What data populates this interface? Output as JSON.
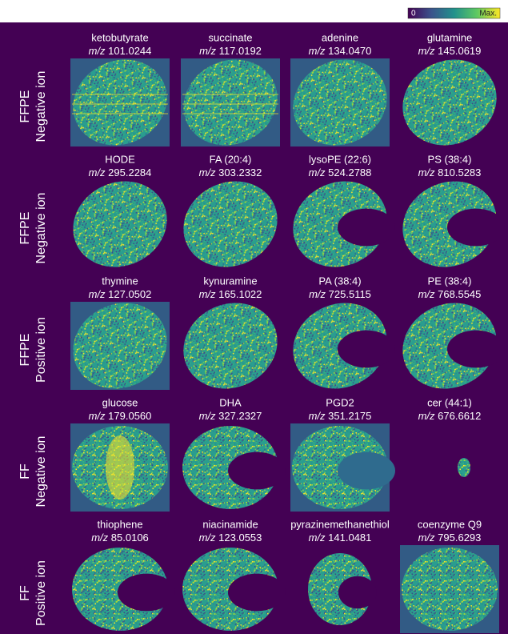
{
  "colorbar": {
    "min_label": "0",
    "max_label": "Max."
  },
  "mz_label": "m/z",
  "rows": [
    {
      "label": [
        "FFPE",
        "Negative ion"
      ],
      "panels": [
        {
          "name": "ketobutyrate",
          "mz": "101.0244"
        },
        {
          "name": "succinate",
          "mz": "117.0192"
        },
        {
          "name": "adenine",
          "mz": "134.0470"
        },
        {
          "name": "glutamine",
          "mz": "145.0619"
        }
      ]
    },
    {
      "label": [
        "FFPE",
        "Negative ion"
      ],
      "panels": [
        {
          "name": "HODE",
          "mz": "295.2284"
        },
        {
          "name": "FA (20:4)",
          "mz": "303.2332"
        },
        {
          "name": "lysoPE (22:6)",
          "mz": "524.2788"
        },
        {
          "name": "PS (38:4)",
          "mz": "810.5283"
        }
      ]
    },
    {
      "label": [
        "FFPE",
        "Positive ion"
      ],
      "panels": [
        {
          "name": "thymine",
          "mz": "127.0502"
        },
        {
          "name": "kynuramine",
          "mz": "165.1022"
        },
        {
          "name": "PA (38:4)",
          "mz": "725.5115"
        },
        {
          "name": "PE (38:4)",
          "mz": "768.5545"
        }
      ]
    },
    {
      "label": [
        "FF",
        "Negative ion"
      ],
      "panels": [
        {
          "name": "glucose",
          "mz": "179.0560"
        },
        {
          "name": "DHA",
          "mz": "327.2327"
        },
        {
          "name": "PGD2",
          "mz": "351.2175"
        },
        {
          "name": "cer (44:1)",
          "mz": "676.6612"
        }
      ]
    },
    {
      "label": [
        "FF",
        "Positive ion"
      ],
      "panels": [
        {
          "name": "thiophene",
          "mz": "85.0106"
        },
        {
          "name": "niacinamide",
          "mz": "123.0553"
        },
        {
          "name": "pyrazinemethanethiol",
          "mz": "141.0481"
        },
        {
          "name": "coenzyme Q9",
          "mz": "795.6293"
        }
      ]
    }
  ]
}
